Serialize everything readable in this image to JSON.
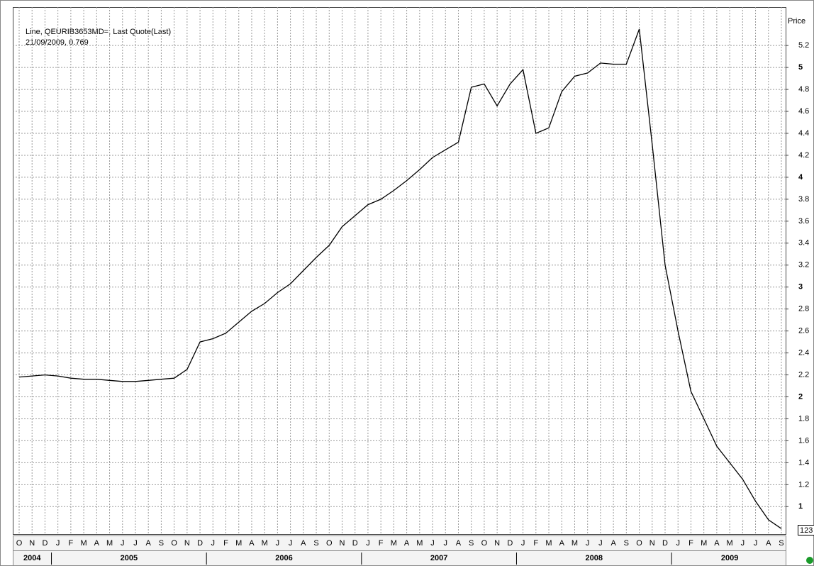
{
  "chart_data": {
    "type": "line",
    "legend_lines": [
      "Line, QEURIB3653MD=, Last Quote(Last)",
      "21/09/2009, 0.769"
    ],
    "axis_label": "Price",
    "last_label": "123",
    "x": [
      "2004-10",
      "2004-11",
      "2004-12",
      "2005-01",
      "2005-02",
      "2005-03",
      "2005-04",
      "2005-05",
      "2005-06",
      "2005-07",
      "2005-08",
      "2005-09",
      "2005-10",
      "2005-11",
      "2005-12",
      "2006-01",
      "2006-02",
      "2006-03",
      "2006-04",
      "2006-05",
      "2006-06",
      "2006-07",
      "2006-08",
      "2006-09",
      "2006-10",
      "2006-11",
      "2006-12",
      "2007-01",
      "2007-02",
      "2007-03",
      "2007-04",
      "2007-05",
      "2007-06",
      "2007-07",
      "2007-08",
      "2007-09",
      "2007-10",
      "2007-11",
      "2007-12",
      "2008-01",
      "2008-02",
      "2008-03",
      "2008-04",
      "2008-05",
      "2008-06",
      "2008-07",
      "2008-08",
      "2008-09",
      "2008-10",
      "2008-11",
      "2008-12",
      "2009-01",
      "2009-02",
      "2009-03",
      "2009-04",
      "2009-05",
      "2009-06",
      "2009-07",
      "2009-08",
      "2009-09"
    ],
    "month_labels": [
      "O",
      "N",
      "D",
      "J",
      "F",
      "M",
      "A",
      "M",
      "J",
      "J",
      "A",
      "S",
      "O",
      "N",
      "D",
      "J",
      "F",
      "M",
      "A",
      "M",
      "J",
      "J",
      "A",
      "S",
      "O",
      "N",
      "D",
      "J",
      "F",
      "M",
      "A",
      "M",
      "J",
      "J",
      "A",
      "S",
      "O",
      "N",
      "D",
      "J",
      "F",
      "M",
      "A",
      "M",
      "J",
      "J",
      "A",
      "S",
      "O",
      "N",
      "D",
      "J",
      "F",
      "M",
      "A",
      "M",
      "J",
      "J",
      "A",
      "S"
    ],
    "years": [
      "2004",
      "2005",
      "2006",
      "2007",
      "2008",
      "2009"
    ],
    "series": [
      {
        "name": "QEURIB3653MD=",
        "color": "#000000",
        "values": [
          2.18,
          2.19,
          2.2,
          2.19,
          2.17,
          2.16,
          2.16,
          2.15,
          2.14,
          2.14,
          2.15,
          2.16,
          2.17,
          2.25,
          2.5,
          2.53,
          2.58,
          2.68,
          2.78,
          2.85,
          2.95,
          3.03,
          3.15,
          3.27,
          3.38,
          3.55,
          3.65,
          3.75,
          3.8,
          3.88,
          3.97,
          4.07,
          4.18,
          4.25,
          4.32,
          4.82,
          4.85,
          4.65,
          4.85,
          4.98,
          4.4,
          4.45,
          4.78,
          4.92,
          4.95,
          5.04,
          5.03,
          5.03,
          5.35,
          4.3,
          3.2,
          2.6,
          2.05,
          1.8,
          1.55,
          1.4,
          1.25,
          1.05,
          0.88,
          0.8
        ]
      }
    ],
    "ylim": [
      0.75,
      5.55
    ],
    "yticks": [
      1,
      1.2,
      1.4,
      1.6,
      1.8,
      2,
      2.2,
      2.4,
      2.6,
      2.8,
      3,
      3.2,
      3.4,
      3.6,
      3.8,
      4,
      4.2,
      4.4,
      4.6,
      4.8,
      5,
      5.2
    ],
    "grid": true
  }
}
